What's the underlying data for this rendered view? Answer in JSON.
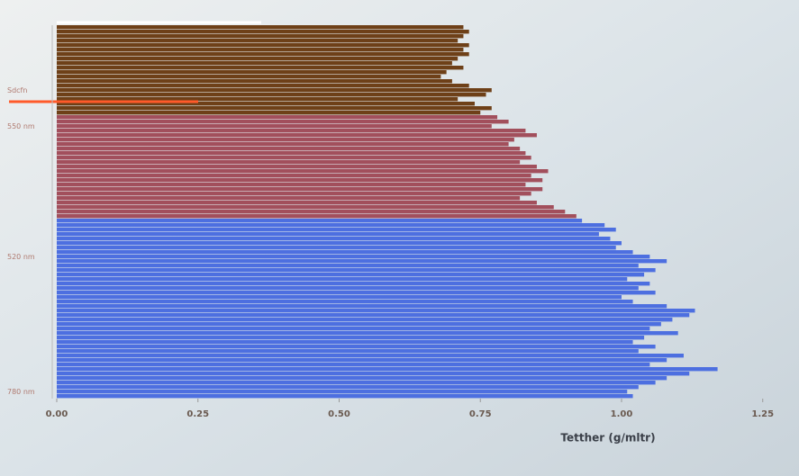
{
  "chart_data": {
    "type": "barh",
    "x_label": "Tetther (g/mltr)",
    "xlim": [
      0,
      1.3
    ],
    "xticks": [
      {
        "value": 0,
        "label": "0.00"
      },
      {
        "value": 0.25,
        "label": "0.25"
      },
      {
        "value": 0.5,
        "label": "0.50"
      },
      {
        "value": 0.75,
        "label": "0.75"
      },
      {
        "value": 1,
        "label": "1.00"
      },
      {
        "value": 1.25,
        "label": "1.25"
      }
    ],
    "categories": [
      null,
      null,
      null,
      null,
      null,
      null,
      null,
      null,
      null,
      null,
      null,
      null,
      null,
      null,
      "Sdcfn",
      null,
      null,
      null,
      null,
      null,
      null,
      null,
      "550 nm",
      null,
      null,
      null,
      null,
      null,
      null,
      null,
      null,
      null,
      null,
      null,
      null,
      null,
      null,
      null,
      null,
      null,
      null,
      null,
      null,
      null,
      null,
      null,
      null,
      null,
      null,
      null,
      null,
      "520 nm",
      null,
      null,
      null,
      null,
      null,
      null,
      null,
      null,
      null,
      null,
      null,
      null,
      null,
      null,
      null,
      null,
      null,
      null,
      null,
      null,
      null,
      null,
      null,
      null,
      null,
      null,
      null,
      null,
      null,
      "780 nm",
      null
    ],
    "series": [
      {
        "color": "#6e4018",
        "values": [
          0.72,
          0.73,
          0.72,
          0.71,
          0.73,
          0.72,
          0.73,
          0.71,
          0.7,
          0.72,
          0.69,
          0.68,
          0.7,
          0.73,
          0.77,
          0.76,
          0.71,
          0.74,
          0.77,
          0.75,
          null,
          null,
          null,
          null,
          null,
          null,
          null,
          null,
          null,
          null,
          null,
          null,
          null,
          null,
          null,
          null,
          null,
          null,
          null,
          null,
          null,
          null,
          null,
          null,
          null,
          null,
          null,
          null,
          null,
          null,
          null,
          null,
          null,
          null,
          null,
          null,
          null,
          null,
          null,
          null,
          null,
          null,
          null,
          null,
          null,
          null,
          null,
          null,
          null,
          null,
          null,
          null,
          null,
          null,
          null,
          null,
          null,
          null,
          null,
          null,
          null,
          null,
          null
        ]
      },
      {
        "color": "#a24f5c",
        "values": [
          null,
          null,
          null,
          null,
          null,
          null,
          null,
          null,
          null,
          null,
          null,
          null,
          null,
          null,
          null,
          null,
          null,
          null,
          null,
          null,
          0.78,
          0.8,
          0.77,
          0.83,
          0.85,
          0.81,
          0.8,
          0.82,
          0.83,
          0.84,
          0.82,
          0.85,
          0.87,
          0.84,
          0.86,
          0.83,
          0.86,
          0.84,
          0.82,
          0.85,
          0.88,
          0.9,
          0.92,
          null,
          null,
          null,
          null,
          null,
          null,
          null,
          null,
          null,
          null,
          null,
          null,
          null,
          null,
          null,
          null,
          null,
          null,
          null,
          null,
          null,
          null,
          null,
          null,
          null,
          null,
          null,
          null,
          null,
          null,
          null,
          null,
          null,
          null,
          null,
          null,
          null,
          null,
          null,
          null
        ]
      },
      {
        "color": "#4d6fe0",
        "values": [
          null,
          null,
          null,
          null,
          null,
          null,
          null,
          null,
          null,
          null,
          null,
          null,
          null,
          null,
          null,
          null,
          null,
          null,
          null,
          null,
          null,
          null,
          null,
          null,
          null,
          null,
          null,
          null,
          null,
          null,
          null,
          null,
          null,
          null,
          null,
          null,
          null,
          null,
          null,
          null,
          null,
          null,
          null,
          0.93,
          0.97,
          0.99,
          0.96,
          0.98,
          1.0,
          0.99,
          1.02,
          1.05,
          1.08,
          1.03,
          1.06,
          1.04,
          1.01,
          1.05,
          1.03,
          1.06,
          1.0,
          1.02,
          1.08,
          1.13,
          1.12,
          1.09,
          1.07,
          1.05,
          1.1,
          1.04,
          1.02,
          1.06,
          1.03,
          1.11,
          1.08,
          1.05,
          1.17,
          1.12,
          1.08,
          1.06,
          1.03,
          1.01,
          1.02
        ]
      }
    ]
  }
}
